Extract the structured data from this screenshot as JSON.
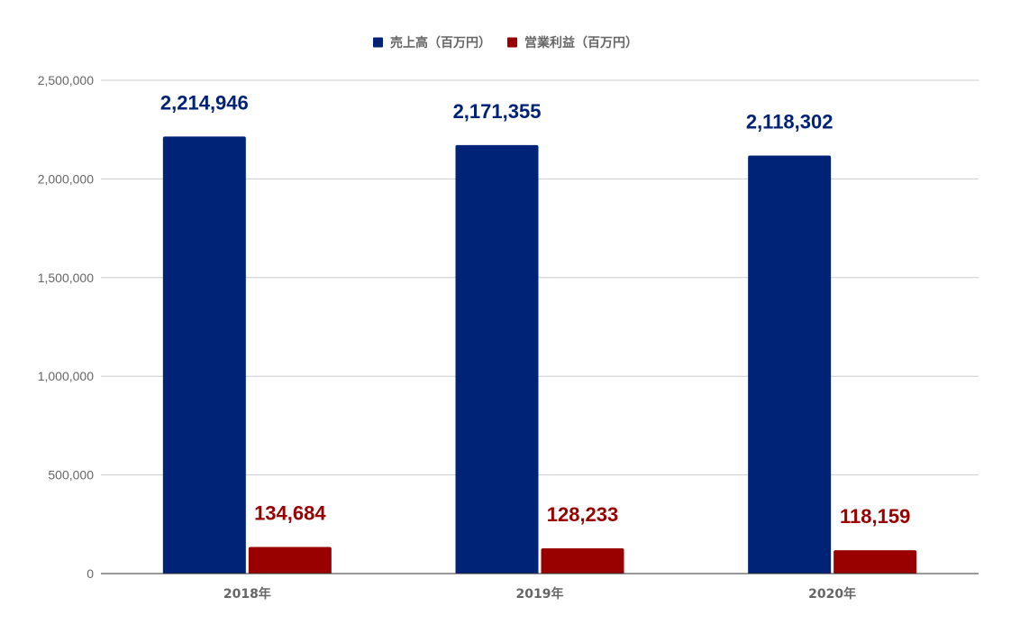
{
  "chart_data": {
    "type": "bar",
    "title": "",
    "xlabel": "",
    "ylabel": "",
    "categories": [
      "2018年",
      "2019年",
      "2020年"
    ],
    "series": [
      {
        "name": "売上高（百万円）",
        "color": "#002277",
        "values": [
          2214946,
          2171355,
          2118302
        ],
        "labels": [
          "2,214,946",
          "2,171,355",
          "2,118,302"
        ]
      },
      {
        "name": "営業利益（百万円）",
        "color": "#990000",
        "values": [
          134684,
          128233,
          118159
        ],
        "labels": [
          "134,684",
          "128,233",
          "118,159"
        ]
      }
    ],
    "ylim": [
      0,
      2500000
    ],
    "yticks": [
      0,
      500000,
      1000000,
      1500000,
      2000000,
      2500000
    ],
    "ytick_labels": [
      "0",
      "500,000",
      "1,000,000",
      "1,500,000",
      "2,000,000",
      "2,500,000"
    ],
    "grid": true,
    "legend_position": "top-center",
    "grid_color": "#cccccc",
    "axis_color": "#333333"
  }
}
